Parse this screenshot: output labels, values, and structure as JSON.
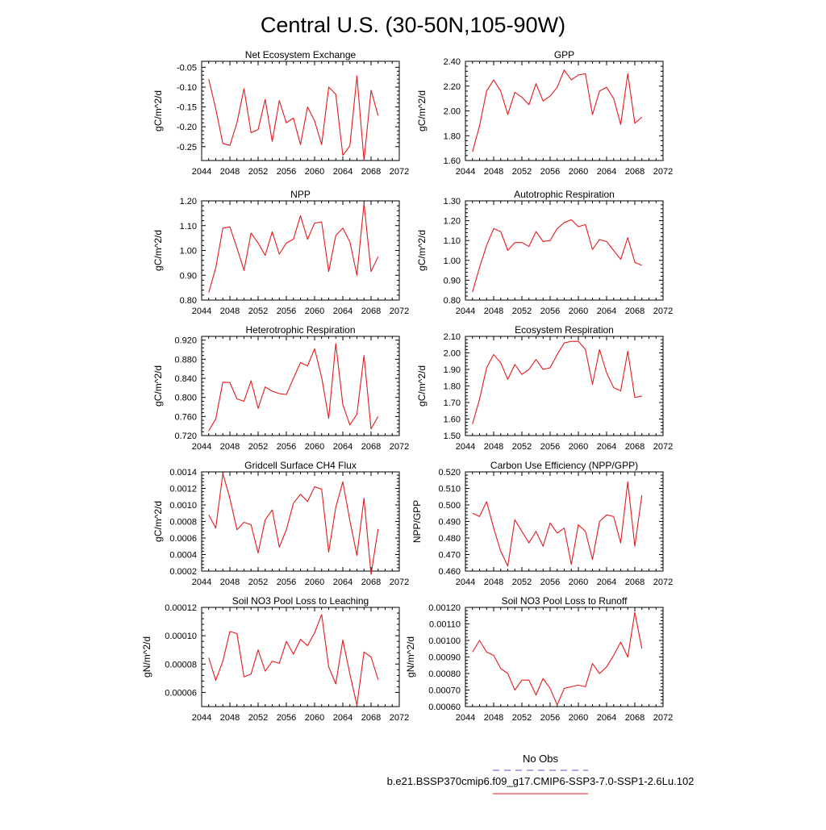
{
  "figure": {
    "title": "Central U.S. (30-50N,105-90W)",
    "legend": {
      "entries": [
        {
          "label": "No Obs",
          "color": "#5555cc",
          "dash": "8,6"
        },
        {
          "label": "b.e21.BSSP370cmip6.f09_g17.CMIP6-SSP3-7.0-SSP1-2.6Lu.102",
          "color": "#e41a1c",
          "dash": ""
        }
      ]
    }
  },
  "chart_data": [
    {
      "type": "line",
      "title": "Net Ecosystem Exchange",
      "ylabel": "gC/m^2/d",
      "xlim": [
        2044,
        2072
      ],
      "xticks": [
        "2044",
        "2048",
        "2052",
        "2056",
        "2060",
        "2064",
        "2068",
        "2072"
      ],
      "ylim": [
        -0.285,
        -0.035
      ],
      "yticks": [
        "-0.05",
        "-0.10",
        "-0.15",
        "-0.20",
        "-0.25"
      ],
      "ytick_values": [
        -0.05,
        -0.1,
        -0.15,
        -0.2,
        -0.25
      ],
      "x": [
        2045,
        2046,
        2047,
        2048,
        2049,
        2050,
        2051,
        2052,
        2053,
        2054,
        2055,
        2056,
        2057,
        2058,
        2059,
        2060,
        2061,
        2062,
        2063,
        2064,
        2065,
        2066,
        2067,
        2068,
        2069
      ],
      "series": [
        {
          "color": "#e41a1c",
          "values": [
            -0.08,
            -0.155,
            -0.242,
            -0.247,
            -0.19,
            -0.104,
            -0.215,
            -0.207,
            -0.131,
            -0.237,
            -0.134,
            -0.19,
            -0.178,
            -0.245,
            -0.15,
            -0.185,
            -0.245,
            -0.1,
            -0.118,
            -0.272,
            -0.248,
            -0.072,
            -0.285,
            -0.108,
            -0.172
          ]
        }
      ]
    },
    {
      "type": "line",
      "title": "GPP",
      "ylabel": "gC/m^2/d",
      "xlim": [
        2044,
        2072
      ],
      "xticks": [
        "2044",
        "2048",
        "2052",
        "2056",
        "2060",
        "2064",
        "2068",
        "2072"
      ],
      "ylim": [
        1.6,
        2.4
      ],
      "yticks": [
        "2.40",
        "2.20",
        "2.00",
        "1.80",
        "1.60"
      ],
      "ytick_values": [
        2.4,
        2.2,
        2.0,
        1.8,
        1.6
      ],
      "x": [
        2045,
        2046,
        2047,
        2048,
        2049,
        2050,
        2051,
        2052,
        2053,
        2054,
        2055,
        2056,
        2057,
        2058,
        2059,
        2060,
        2061,
        2062,
        2063,
        2064,
        2065,
        2066,
        2067,
        2068,
        2069
      ],
      "series": [
        {
          "color": "#e41a1c",
          "values": [
            1.67,
            1.88,
            2.16,
            2.25,
            2.16,
            1.97,
            2.15,
            2.11,
            2.05,
            2.22,
            2.08,
            2.12,
            2.19,
            2.33,
            2.25,
            2.29,
            2.3,
            1.97,
            2.16,
            2.19,
            2.1,
            1.89,
            2.3,
            1.9,
            1.95
          ]
        }
      ]
    },
    {
      "type": "line",
      "title": "NPP",
      "ylabel": "gC/m^2/d",
      "xlim": [
        2044,
        2072
      ],
      "xticks": [
        "2044",
        "2048",
        "2052",
        "2056",
        "2060",
        "2064",
        "2068",
        "2072"
      ],
      "ylim": [
        0.8,
        1.2
      ],
      "yticks": [
        "1.20",
        "1.10",
        "1.00",
        "0.90",
        "0.80"
      ],
      "ytick_values": [
        1.2,
        1.1,
        1.0,
        0.9,
        0.8
      ],
      "x": [
        2045,
        2046,
        2047,
        2048,
        2049,
        2050,
        2051,
        2052,
        2053,
        2054,
        2055,
        2056,
        2057,
        2058,
        2059,
        2060,
        2061,
        2062,
        2063,
        2064,
        2065,
        2066,
        2067,
        2068,
        2069
      ],
      "series": [
        {
          "color": "#e41a1c",
          "values": [
            0.83,
            0.93,
            1.09,
            1.095,
            1.01,
            0.92,
            1.07,
            1.03,
            0.98,
            1.075,
            0.985,
            1.03,
            1.045,
            1.14,
            1.045,
            1.11,
            1.115,
            0.915,
            1.06,
            1.09,
            1.035,
            0.9,
            1.19,
            0.915,
            0.975
          ]
        }
      ]
    },
    {
      "type": "line",
      "title": "Autotrophic Respiration",
      "ylabel": "gC/m^2/d",
      "xlim": [
        2044,
        2072
      ],
      "xticks": [
        "2044",
        "2048",
        "2052",
        "2056",
        "2060",
        "2064",
        "2068",
        "2072"
      ],
      "ylim": [
        0.8,
        1.3
      ],
      "yticks": [
        "1.30",
        "1.20",
        "1.10",
        "1.00",
        "0.90",
        "0.80"
      ],
      "ytick_values": [
        1.3,
        1.2,
        1.1,
        1.0,
        0.9,
        0.8
      ],
      "x": [
        2045,
        2046,
        2047,
        2048,
        2049,
        2050,
        2051,
        2052,
        2053,
        2054,
        2055,
        2056,
        2057,
        2058,
        2059,
        2060,
        2061,
        2062,
        2063,
        2064,
        2065,
        2066,
        2067,
        2068,
        2069
      ],
      "series": [
        {
          "color": "#e41a1c",
          "values": [
            0.84,
            0.965,
            1.075,
            1.16,
            1.145,
            1.05,
            1.09,
            1.09,
            1.07,
            1.145,
            1.095,
            1.1,
            1.16,
            1.19,
            1.205,
            1.17,
            1.18,
            1.055,
            1.105,
            1.095,
            1.05,
            1.005,
            1.115,
            0.99,
            0.975
          ]
        }
      ]
    },
    {
      "type": "line",
      "title": "Heterotrophic Respiration",
      "ylabel": "gC/m^2/d",
      "xlim": [
        2044,
        2072
      ],
      "xticks": [
        "2044",
        "2048",
        "2052",
        "2056",
        "2060",
        "2064",
        "2068",
        "2072"
      ],
      "ylim": [
        0.72,
        0.928
      ],
      "yticks": [
        "0.920",
        "0.880",
        "0.840",
        "0.800",
        "0.760",
        "0.720"
      ],
      "ytick_values": [
        0.92,
        0.88,
        0.84,
        0.8,
        0.76,
        0.72
      ],
      "x": [
        2045,
        2046,
        2047,
        2048,
        2049,
        2050,
        2051,
        2052,
        2053,
        2054,
        2055,
        2056,
        2057,
        2058,
        2059,
        2060,
        2061,
        2062,
        2063,
        2064,
        2065,
        2066,
        2067,
        2068,
        2069
      ],
      "series": [
        {
          "color": "#e41a1c",
          "values": [
            0.73,
            0.755,
            0.832,
            0.831,
            0.797,
            0.792,
            0.835,
            0.777,
            0.822,
            0.813,
            0.808,
            0.806,
            0.84,
            0.873,
            0.866,
            0.902,
            0.842,
            0.756,
            0.913,
            0.785,
            0.742,
            0.765,
            0.888,
            0.734,
            0.76
          ]
        }
      ]
    },
    {
      "type": "line",
      "title": "Ecosystem Respiration",
      "ylabel": "gC/m^2/d",
      "xlim": [
        2044,
        2072
      ],
      "xticks": [
        "2044",
        "2048",
        "2052",
        "2056",
        "2060",
        "2064",
        "2068",
        "2072"
      ],
      "ylim": [
        1.5,
        2.1
      ],
      "yticks": [
        "2.10",
        "2.00",
        "1.90",
        "1.80",
        "1.70",
        "1.60",
        "1.50"
      ],
      "ytick_values": [
        2.1,
        2.0,
        1.9,
        1.8,
        1.7,
        1.6,
        1.5
      ],
      "x": [
        2045,
        2046,
        2047,
        2048,
        2049,
        2050,
        2051,
        2052,
        2053,
        2054,
        2055,
        2056,
        2057,
        2058,
        2059,
        2060,
        2061,
        2062,
        2063,
        2064,
        2065,
        2066,
        2067,
        2068,
        2069
      ],
      "series": [
        {
          "color": "#e41a1c",
          "values": [
            1.57,
            1.72,
            1.91,
            1.99,
            1.94,
            1.84,
            1.93,
            1.87,
            1.9,
            1.96,
            1.9,
            1.91,
            1.99,
            2.06,
            2.07,
            2.07,
            2.02,
            1.81,
            2.02,
            1.88,
            1.79,
            1.77,
            2.01,
            1.73,
            1.74
          ]
        }
      ]
    },
    {
      "type": "line",
      "title": "Gridcell Surface CH4 Flux",
      "ylabel": "gC/m^2/d",
      "xlim": [
        2044,
        2072
      ],
      "xticks": [
        "2044",
        "2048",
        "2052",
        "2056",
        "2060",
        "2064",
        "2068",
        "2072"
      ],
      "ylim": [
        0.0002,
        0.0014
      ],
      "yticks": [
        "0.0014",
        "0.0012",
        "0.0010",
        "0.0008",
        "0.0006",
        "0.0004",
        "0.0002"
      ],
      "ytick_values": [
        0.0014,
        0.0012,
        0.001,
        0.0008,
        0.0006,
        0.0004,
        0.0002
      ],
      "x": [
        2045,
        2046,
        2047,
        2048,
        2049,
        2050,
        2051,
        2052,
        2053,
        2054,
        2055,
        2056,
        2057,
        2058,
        2059,
        2060,
        2061,
        2062,
        2063,
        2064,
        2065,
        2066,
        2067,
        2068,
        2069
      ],
      "series": [
        {
          "color": "#e41a1c",
          "values": [
            0.00088,
            0.00072,
            0.00138,
            0.00108,
            0.0007,
            0.00079,
            0.00076,
            0.00042,
            0.00082,
            0.00094,
            0.00049,
            0.0007,
            0.00102,
            0.00113,
            0.00104,
            0.00122,
            0.00119,
            0.00043,
            0.00097,
            0.00128,
            0.00081,
            0.00039,
            0.00108,
            0.00016,
            0.00071
          ]
        }
      ]
    },
    {
      "type": "line",
      "title": "Carbon Use Efficiency (NPP/GPP)",
      "ylabel": "NPP/GPP",
      "xlim": [
        2044,
        2072
      ],
      "xticks": [
        "2044",
        "2048",
        "2052",
        "2056",
        "2060",
        "2064",
        "2068",
        "2072"
      ],
      "ylim": [
        0.46,
        0.52
      ],
      "yticks": [
        "0.520",
        "0.510",
        "0.500",
        "0.490",
        "0.480",
        "0.470",
        "0.460"
      ],
      "ytick_values": [
        0.52,
        0.51,
        0.5,
        0.49,
        0.48,
        0.47,
        0.46
      ],
      "x": [
        2045,
        2046,
        2047,
        2048,
        2049,
        2050,
        2051,
        2052,
        2053,
        2054,
        2055,
        2056,
        2057,
        2058,
        2059,
        2060,
        2061,
        2062,
        2063,
        2064,
        2065,
        2066,
        2067,
        2068,
        2069
      ],
      "series": [
        {
          "color": "#e41a1c",
          "values": [
            0.495,
            0.493,
            0.502,
            0.486,
            0.472,
            0.463,
            0.491,
            0.484,
            0.477,
            0.484,
            0.475,
            0.489,
            0.483,
            0.486,
            0.464,
            0.488,
            0.484,
            0.467,
            0.49,
            0.494,
            0.493,
            0.477,
            0.514,
            0.475,
            0.506
          ]
        }
      ]
    },
    {
      "type": "line",
      "title": "Soil NO3 Pool Loss to Leaching",
      "ylabel": "gN/m^2/d",
      "xlim": [
        2044,
        2072
      ],
      "xticks": [
        "2044",
        "2048",
        "2052",
        "2056",
        "2060",
        "2064",
        "2068",
        "2072"
      ],
      "ylim": [
        5e-05,
        0.00012
      ],
      "yticks": [
        "0.00012",
        "0.00010",
        "0.00008",
        "0.00006"
      ],
      "ytick_values": [
        0.00012,
        0.0001,
        8e-05,
        6e-05
      ],
      "x": [
        2045,
        2046,
        2047,
        2048,
        2049,
        2050,
        2051,
        2052,
        2053,
        2054,
        2055,
        2056,
        2057,
        2058,
        2059,
        2060,
        2061,
        2062,
        2063,
        2064,
        2065,
        2066,
        2067,
        2068,
        2069
      ],
      "series": [
        {
          "color": "#e41a1c",
          "values": [
            8.45e-05,
            6.85e-05,
            8.2e-05,
            0.000103,
            0.0001015,
            7.1e-05,
            7.3e-05,
            9e-05,
            7.5e-05,
            8.2e-05,
            8.05e-05,
            9.6e-05,
            8.7e-05,
            9.75e-05,
            9.3e-05,
            0.000102,
            0.000115,
            7.8e-05,
            6.6e-05,
            9.7e-05,
            7.3e-05,
            5.1e-05,
            8.85e-05,
            8.5e-05,
            6.9e-05
          ]
        }
      ]
    },
    {
      "type": "line",
      "title": "Soil NO3 Pool Loss to Runoff",
      "ylabel": "gN/m^2/d",
      "xlim": [
        2044,
        2072
      ],
      "xticks": [
        "2044",
        "2048",
        "2052",
        "2056",
        "2060",
        "2064",
        "2068",
        "2072"
      ],
      "ylim": [
        0.0006,
        0.0012
      ],
      "yticks": [
        "0.00120",
        "0.00110",
        "0.00100",
        "0.00090",
        "0.00080",
        "0.00070",
        "0.00060"
      ],
      "ytick_values": [
        0.0012,
        0.0011,
        0.001,
        0.0009,
        0.0008,
        0.0007,
        0.0006
      ],
      "x": [
        2045,
        2046,
        2047,
        2048,
        2049,
        2050,
        2051,
        2052,
        2053,
        2054,
        2055,
        2056,
        2057,
        2058,
        2059,
        2060,
        2061,
        2062,
        2063,
        2064,
        2065,
        2066,
        2067,
        2068,
        2069
      ],
      "series": [
        {
          "color": "#e41a1c",
          "values": [
            0.00093,
            0.001,
            0.00093,
            0.00091,
            0.00083,
            0.0008,
            0.0007,
            0.00076,
            0.00076,
            0.00067,
            0.00077,
            0.00071,
            0.00061,
            0.00071,
            0.00072,
            0.00073,
            0.00072,
            0.00086,
            0.0008,
            0.00084,
            0.00091,
            0.00099,
            0.0009,
            0.00117,
            0.00095
          ]
        }
      ]
    }
  ]
}
